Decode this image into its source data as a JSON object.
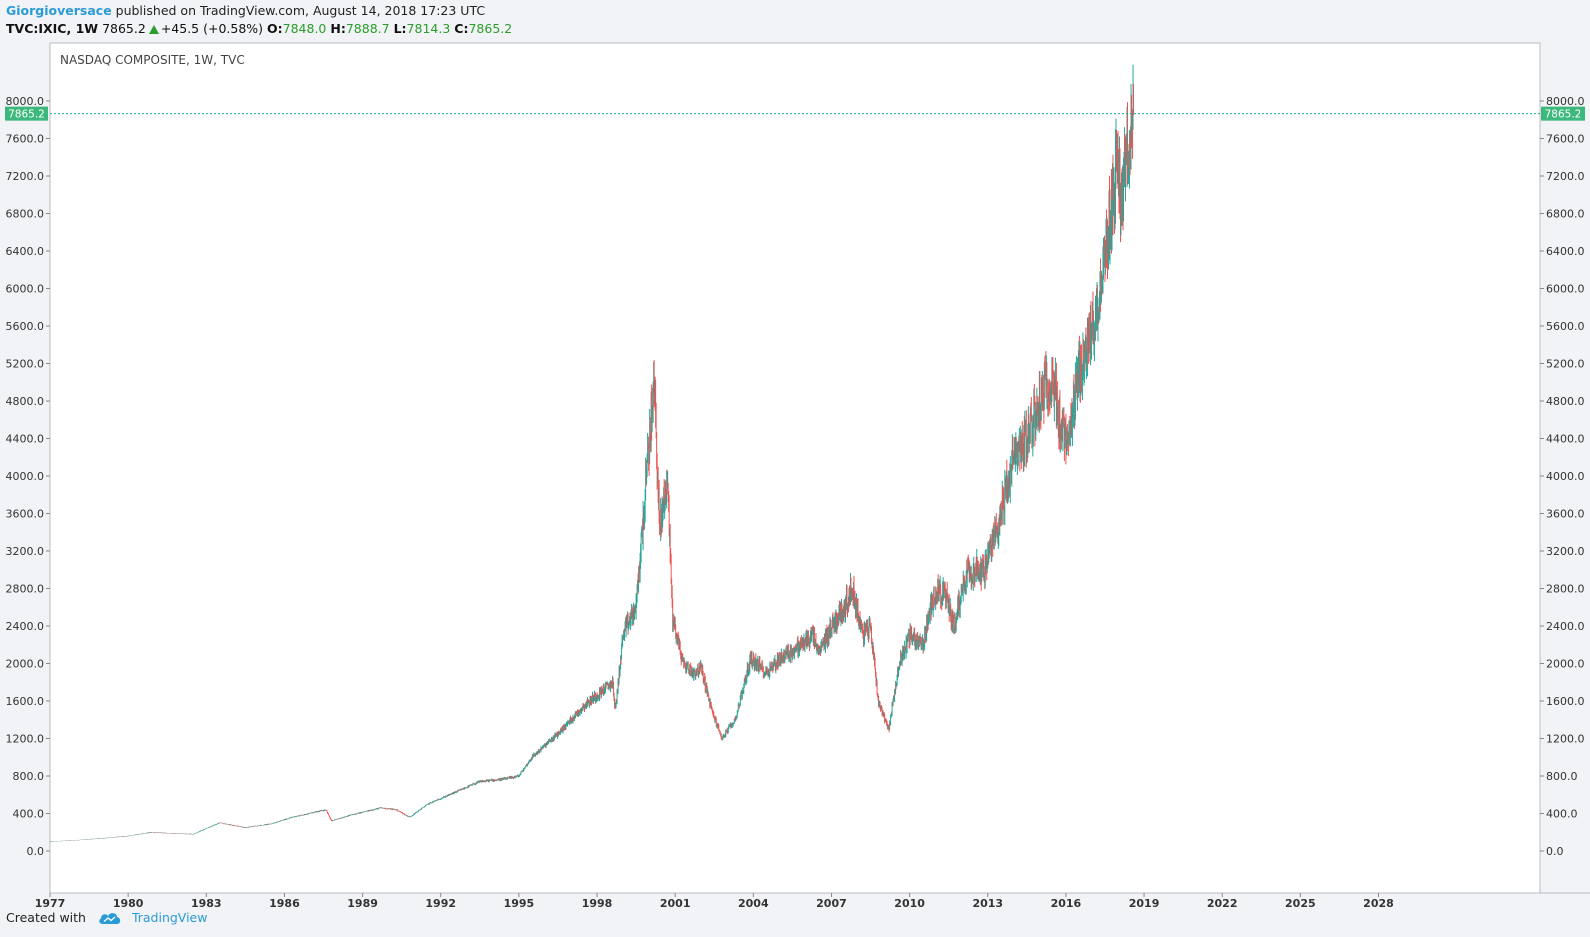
{
  "header": {
    "author": "Giorgioversace",
    "published_text": " published on TradingView.com, August 14, 2018 17:23 UTC"
  },
  "symbol": {
    "ticker": "TVC:IXIC, 1W",
    "last": "7865.2",
    "change": "+45.5 (+0.58%)",
    "open_label": "O:",
    "open": "7848.0",
    "high_label": "H:",
    "high": "7888.7",
    "low_label": "L:",
    "low": "7814.3",
    "close_label": "C:",
    "close": "7865.2"
  },
  "footer": {
    "created_with": "Created with",
    "brand": "TradingView"
  },
  "colors": {
    "up": "#26a69a",
    "down": "#ef5350",
    "price_tag": "#3cb87c",
    "accent": "#2a9bd6"
  },
  "chart_data": {
    "type": "candlestick",
    "title": "NASDAQ COMPOSITE, 1W, TVC",
    "last_price": 7865.2,
    "last_price_label": "7865.2",
    "ylim": [
      -350,
      8250
    ],
    "y_ticks": [
      0,
      400,
      800,
      1200,
      1600,
      2000,
      2400,
      2800,
      3200,
      3600,
      4000,
      4400,
      4800,
      5200,
      5600,
      6000,
      6400,
      6800,
      7200,
      7600,
      8000
    ],
    "y_tick_labels": [
      "0.0",
      "400.0",
      "800.0",
      "1200.0",
      "1600.0",
      "2000.0",
      "2400.0",
      "2800.0",
      "3200.0",
      "3600.0",
      "4000.0",
      "4400.0",
      "4800.0",
      "5200.0",
      "5600.0",
      "6000.0",
      "6400.0",
      "6800.0",
      "7200.0",
      "7600.0",
      "8000.0"
    ],
    "xlim": [
      1977.0,
      2034.2
    ],
    "x_ticks": [
      1977,
      1980,
      1983,
      1986,
      1989,
      1992,
      1995,
      1998,
      2001,
      2004,
      2007,
      2010,
      2013,
      2016,
      2019,
      2022,
      2025,
      2028
    ],
    "x_tick_labels": [
      "1977",
      "1980",
      "1983",
      "1986",
      "1989",
      "1992",
      "1995",
      "1998",
      "2001",
      "2004",
      "2007",
      "2010",
      "2013",
      "2016",
      "2019",
      "2022",
      "2025",
      "2028"
    ],
    "series": [
      {
        "x": [
          1977.0,
          1978.0,
          1979.0,
          1980.0,
          1980.9,
          1981.5,
          1982.5,
          1983.5,
          1984.5,
          1985.5,
          1986.3,
          1987.6,
          1987.8,
          1988.5,
          1989.7,
          1990.3,
          1990.8,
          1991.5,
          1992.5,
          1993.5,
          1994.5,
          1995.0,
          1995.5,
          1996.5,
          1997.5,
          1998.6,
          1998.7,
          1999.0,
          1999.5,
          1999.9,
          2000.2,
          2000.4,
          2000.7,
          2000.9,
          2001.3,
          2001.7,
          2002.0,
          2002.4,
          2002.8,
          2003.3,
          2003.9,
          2004.5,
          2005.0,
          2005.6,
          2006.3,
          2006.5,
          2007.0,
          2007.5,
          2007.8,
          2008.2,
          2008.5,
          2008.8,
          2009.2,
          2009.6,
          2010.0,
          2010.5,
          2011.0,
          2011.4,
          2011.7,
          2012.2,
          2012.9,
          2013.5,
          2014.0,
          2014.5,
          2015.0,
          2015.5,
          2015.7,
          2016.1,
          2016.5,
          2017.0,
          2017.5,
          2018.0,
          2018.1,
          2018.6
        ],
        "y": [
          100,
          115,
          135,
          160,
          200,
          190,
          180,
          300,
          250,
          290,
          360,
          440,
          320,
          380,
          460,
          440,
          360,
          500,
          620,
          740,
          770,
          800,
          1000,
          1250,
          1550,
          1800,
          1500,
          2300,
          2600,
          4000,
          5000,
          3400,
          4000,
          2500,
          2000,
          1900,
          1950,
          1500,
          1200,
          1400,
          2050,
          1900,
          2050,
          2150,
          2300,
          2100,
          2400,
          2600,
          2800,
          2300,
          2400,
          1600,
          1300,
          2000,
          2300,
          2200,
          2800,
          2700,
          2400,
          3000,
          3000,
          3600,
          4200,
          4400,
          4800,
          5100,
          4600,
          4300,
          5100,
          5500,
          6300,
          7400,
          6900,
          7865.2
        ]
      }
    ]
  }
}
